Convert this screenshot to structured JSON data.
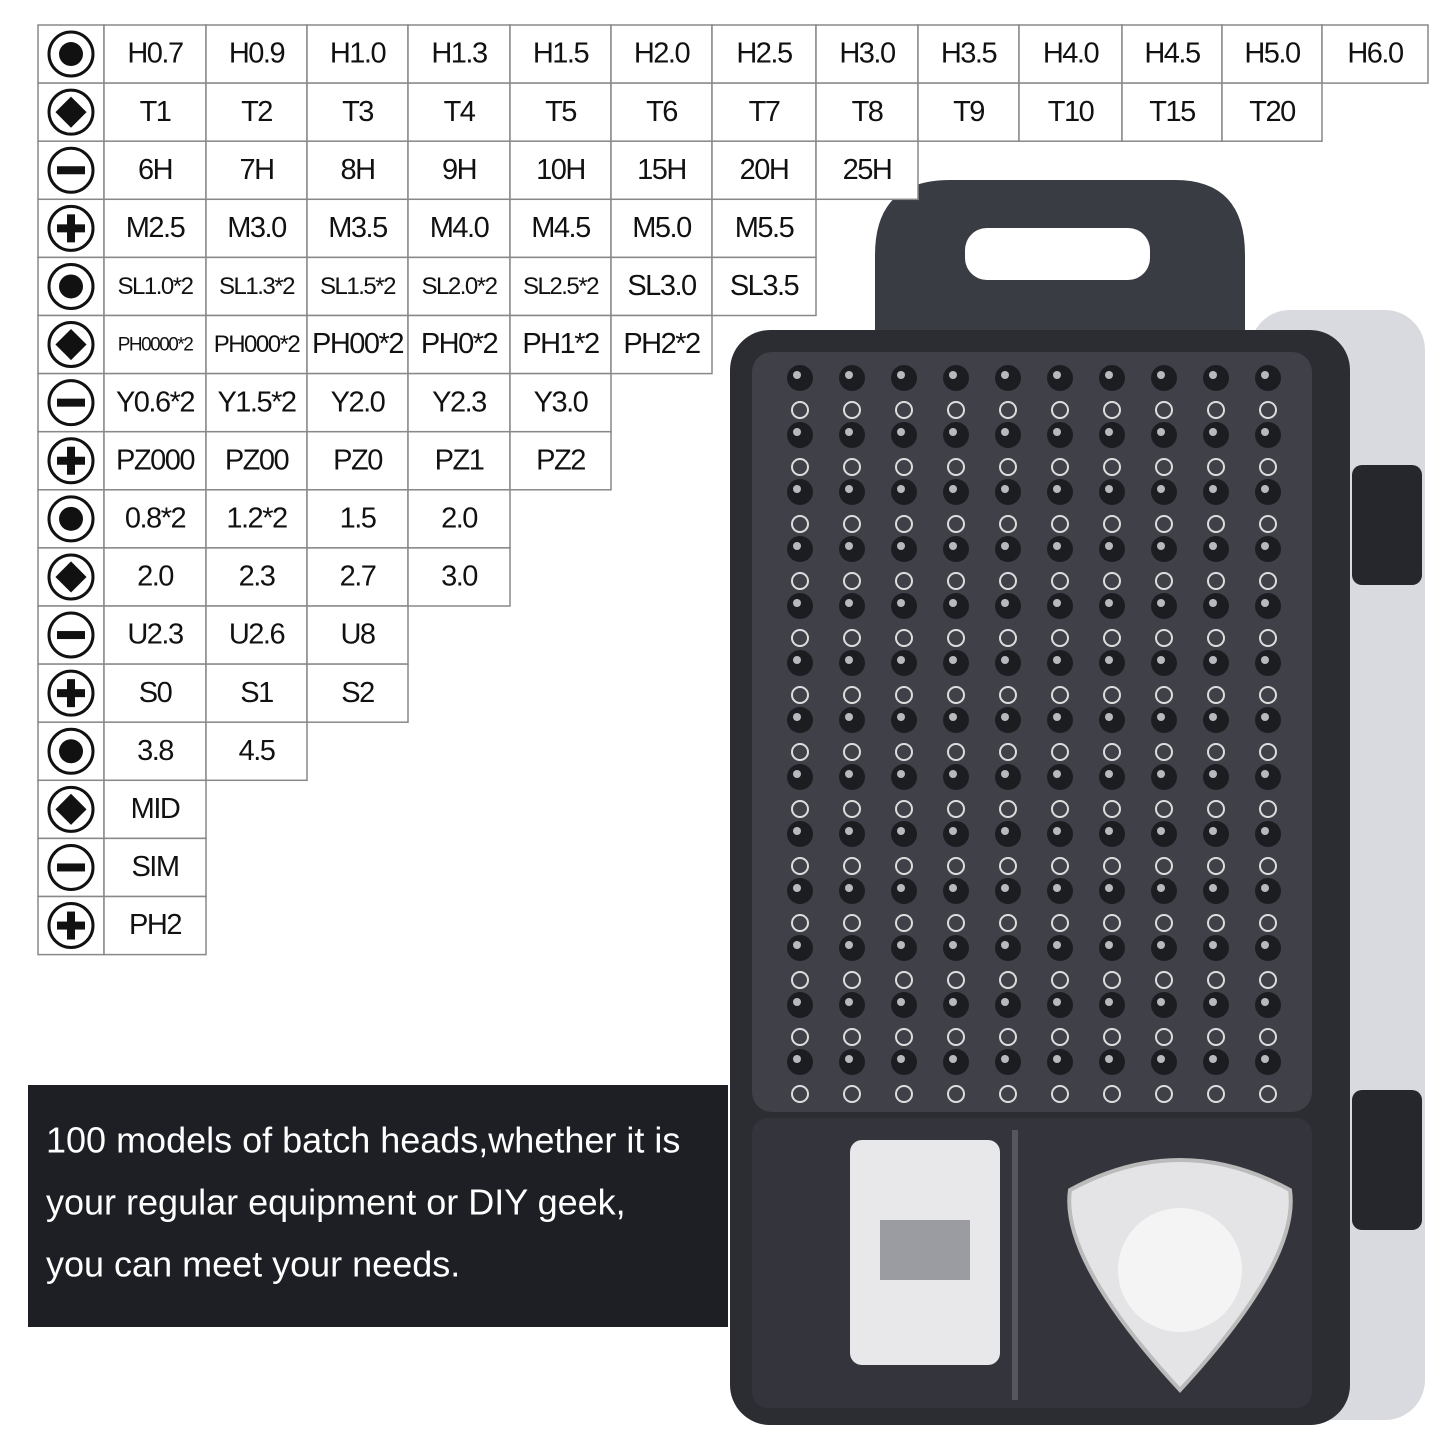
{
  "table": {
    "rows": [
      [
        "H0.7",
        "H0.9",
        "H1.0",
        "H1.3",
        "H1.5",
        "H2.0",
        "H2.5",
        "H3.0",
        "H3.5",
        "H4.0",
        "H4.5",
        "H5.0",
        "H6.0"
      ],
      [
        "T1",
        "T2",
        "T3",
        "T4",
        "T5",
        "T6",
        "T7",
        "T8",
        "T9",
        "T10",
        "T15",
        "T20"
      ],
      [
        "6H",
        "7H",
        "8H",
        "9H",
        "10H",
        "15H",
        "20H",
        "25H"
      ],
      [
        "M2.5",
        "M3.0",
        "M3.5",
        "M4.0",
        "M4.5",
        "M5.0",
        "M5.5"
      ],
      [
        "SL1.0*2",
        "SL1.3*2",
        "SL1.5*2",
        "SL2.0*2",
        "SL2.5*2",
        "SL3.0",
        "SL3.5"
      ],
      [
        "PH0000*2",
        "PH000*2",
        "PH00*2",
        "PH0*2",
        "PH1*2",
        "PH2*2"
      ],
      [
        "Y0.6*2",
        "Y1.5*2",
        "Y2.0",
        "Y2.3",
        "Y3.0"
      ],
      [
        "PZ000",
        "PZ00",
        "PZ0",
        "PZ1",
        "PZ2"
      ],
      [
        "0.8*2",
        "1.2*2",
        "1.5",
        "2.0"
      ],
      [
        "2.0",
        "2.3",
        "2.7",
        "3.0"
      ],
      [
        "U2.3",
        "U2.6",
        "U8"
      ],
      [
        "S0",
        "S1",
        "S2"
      ],
      [
        "3.8",
        "4.5"
      ],
      [
        "MID"
      ],
      [
        "SIM"
      ],
      [
        "PH2"
      ]
    ]
  },
  "caption": {
    "lines": [
      "100 models of batch heads,whether it is",
      "your regular equipment or DIY geek,",
      "you can meet your needs."
    ]
  }
}
